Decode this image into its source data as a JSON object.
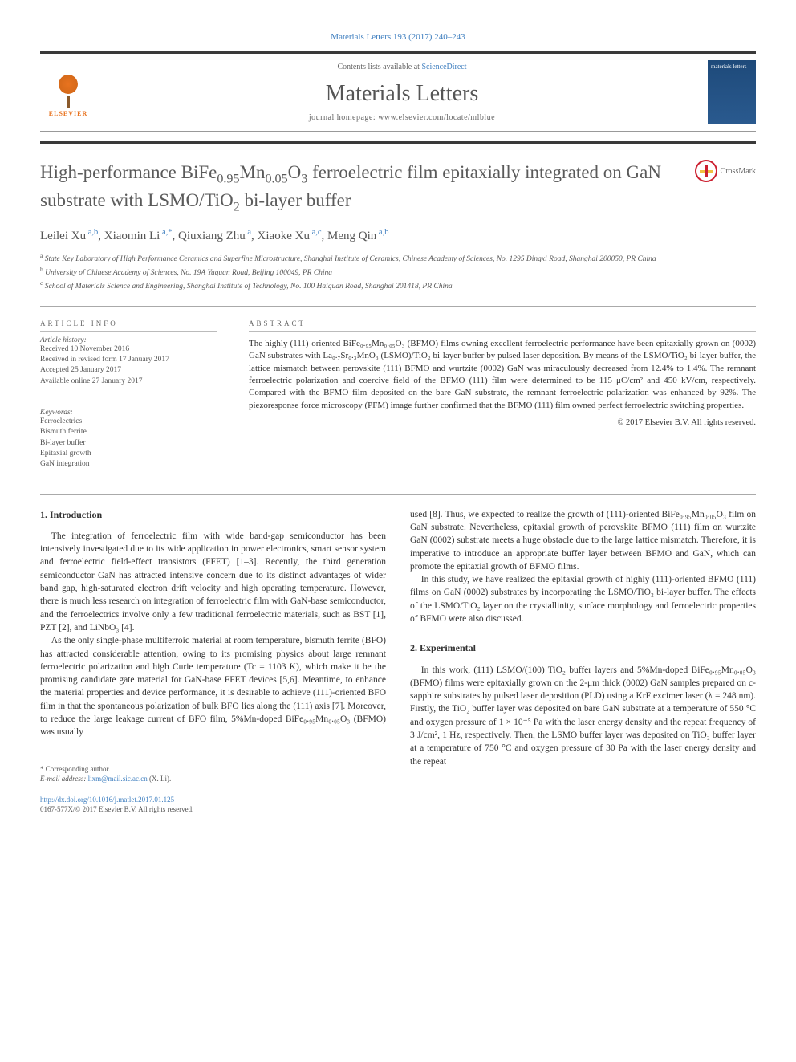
{
  "citation": "Materials Letters 193 (2017) 240–243",
  "contents_text": "Contents lists available at ",
  "sciencedirect": "ScienceDirect",
  "journal_name": "Materials Letters",
  "homepage_text": "journal homepage: www.elsevier.com/locate/mlblue",
  "publisher": "ELSEVIER",
  "cover_text": "materials letters",
  "crossmark_label": "CrossMark",
  "title_parts": {
    "p1": "High-performance BiFe",
    "s1": "0.95",
    "p2": "Mn",
    "s2": "0.05",
    "p3": "O",
    "s3": "3",
    "p4": " ferroelectric film epitaxially integrated on GaN substrate with LSMO/TiO",
    "s4": "2",
    "p5": " bi-layer buffer"
  },
  "authors": [
    {
      "name": "Leilei Xu",
      "aff": "a,b"
    },
    {
      "name": "Xiaomin Li",
      "aff": "a,*"
    },
    {
      "name": "Qiuxiang Zhu",
      "aff": "a"
    },
    {
      "name": "Xiaoke Xu",
      "aff": "a,c"
    },
    {
      "name": "Meng Qin",
      "aff": "a,b"
    }
  ],
  "affiliations": [
    {
      "sup": "a",
      "text": "State Key Laboratory of High Performance Ceramics and Superfine Microstructure, Shanghai Institute of Ceramics, Chinese Academy of Sciences, No. 1295 Dingxi Road, Shanghai 200050, PR China"
    },
    {
      "sup": "b",
      "text": "University of Chinese Academy of Sciences, No. 19A Yuquan Road, Beijing 100049, PR China"
    },
    {
      "sup": "c",
      "text": "School of Materials Science and Engineering, Shanghai Institute of Technology, No. 100 Haiquan Road, Shanghai 201418, PR China"
    }
  ],
  "article_info_heading": "ARTICLE INFO",
  "abstract_heading": "ABSTRACT",
  "history_label": "Article history:",
  "history": [
    "Received 10 November 2016",
    "Received in revised form 17 January 2017",
    "Accepted 25 January 2017",
    "Available online 27 January 2017"
  ],
  "keywords_label": "Keywords:",
  "keywords": [
    "Ferroelectrics",
    "Bismuth ferrite",
    "Bi-layer buffer",
    "Epitaxial growth",
    "GaN integration"
  ],
  "abstract": "The highly (111)-oriented BiFe₀.₉₅Mn₀.₀₅O₃ (BFMO) films owning excellent ferroelectric performance have been epitaxially grown on (0002) GaN substrates with La₀.₇Sr₀.₃MnO₃ (LSMO)/TiO₂ bi-layer buffer by pulsed laser deposition. By means of the LSMO/TiO₂ bi-layer buffer, the lattice mismatch between perovskite (111) BFMO and wurtzite (0002) GaN was miraculously decreased from 12.4% to 1.4%. The remnant ferroelectric polarization and coercive field of the BFMO (111) film were determined to be 115 μC/cm² and 450 kV/cm, respectively. Compared with the BFMO film deposited on the bare GaN substrate, the remnant ferroelectric polarization was enhanced by 92%. The piezoresponse force microscopy (PFM) image further confirmed that the BFMO (111) film owned perfect ferroelectric switching properties.",
  "copyright": "© 2017 Elsevier B.V. All rights reserved.",
  "sections": {
    "intro_heading": "1. Introduction",
    "intro_p1": "The integration of ferroelectric film with wide band-gap semiconductor has been intensively investigated due to its wide application in power electronics, smart sensor system and ferroelectric field-effect transistors (FFET) [1–3]. Recently, the third generation semiconductor GaN has attracted intensive concern due to its distinct advantages of wider band gap, high-saturated electron drift velocity and high operating temperature. However, there is much less research on integration of ferroelectric film with GaN-base semiconductor, and the ferroelectrics involve only a few traditional ferroelectric materials, such as BST [1], PZT [2], and LiNbO₃ [4].",
    "intro_p2": "As the only single-phase multiferroic material at room temperature, bismuth ferrite (BFO) has attracted considerable attention, owing to its promising physics about large remnant ferroelectric polarization and high Curie temperature (Tc = 1103 K), which make it be the promising candidate gate material for GaN-base FFET devices [5,6]. Meantime, to enhance the material properties and device performance, it is desirable to achieve (111)-oriented BFO film in that the spontaneous polarization of bulk BFO lies along the (111) axis [7]. Moreover, to reduce the large leakage current of BFO film, 5%Mn-doped BiFe₀.₉₅Mn₀.₀₅O₃ (BFMO) was usually",
    "intro_p3": "used [8]. Thus, we expected to realize the growth of (111)-oriented BiFe₀.₉₅Mn₀.₀₅O₃ film on GaN substrate. Nevertheless, epitaxial growth of perovskite BFMO (111) film on wurtzite GaN (0002) substrate meets a huge obstacle due to the large lattice mismatch. Therefore, it is imperative to introduce an appropriate buffer layer between BFMO and GaN, which can promote the epitaxial growth of BFMO films.",
    "intro_p4": "In this study, we have realized the epitaxial growth of highly (111)-oriented BFMO (111) films on GaN (0002) substrates by incorporating the LSMO/TiO₂ bi-layer buffer. The effects of the LSMO/TiO₂ layer on the crystallinity, surface morphology and ferroelectric properties of BFMO were also discussed.",
    "exp_heading": "2. Experimental",
    "exp_p1": "In this work, (111) LSMO/(100) TiO₂ buffer layers and 5%Mn-doped BiFe₀.₉₅Mn₀.₀₅O₃ (BFMO) films were epitaxially grown on the 2-μm thick (0002) GaN samples prepared on c-sapphire substrates by pulsed laser deposition (PLD) using a KrF excimer laser (λ = 248 nm). Firstly, the TiO₂ buffer layer was deposited on bare GaN substrate at a temperature of 550 °C and oxygen pressure of 1 × 10⁻⁵ Pa with the laser energy density and the repeat frequency of 3 J/cm², 1 Hz, respectively. Then, the LSMO buffer layer was deposited on TiO₂ buffer layer at a temperature of 750 °C and oxygen pressure of 30 Pa with the laser energy density and the repeat"
  },
  "footnote": {
    "corr": "* Corresponding author.",
    "email_label": "E-mail address: ",
    "email": "lixm@mail.sic.ac.cn",
    "email_name": " (X. Li)."
  },
  "doi": {
    "url": "http://dx.doi.org/10.1016/j.matlet.2017.01.125",
    "issn": "0167-577X/© 2017 Elsevier B.V. All rights reserved."
  },
  "colors": {
    "link": "#4180c0",
    "accent": "#e8731f",
    "text": "#333333",
    "heading": "#5a5a5a"
  }
}
